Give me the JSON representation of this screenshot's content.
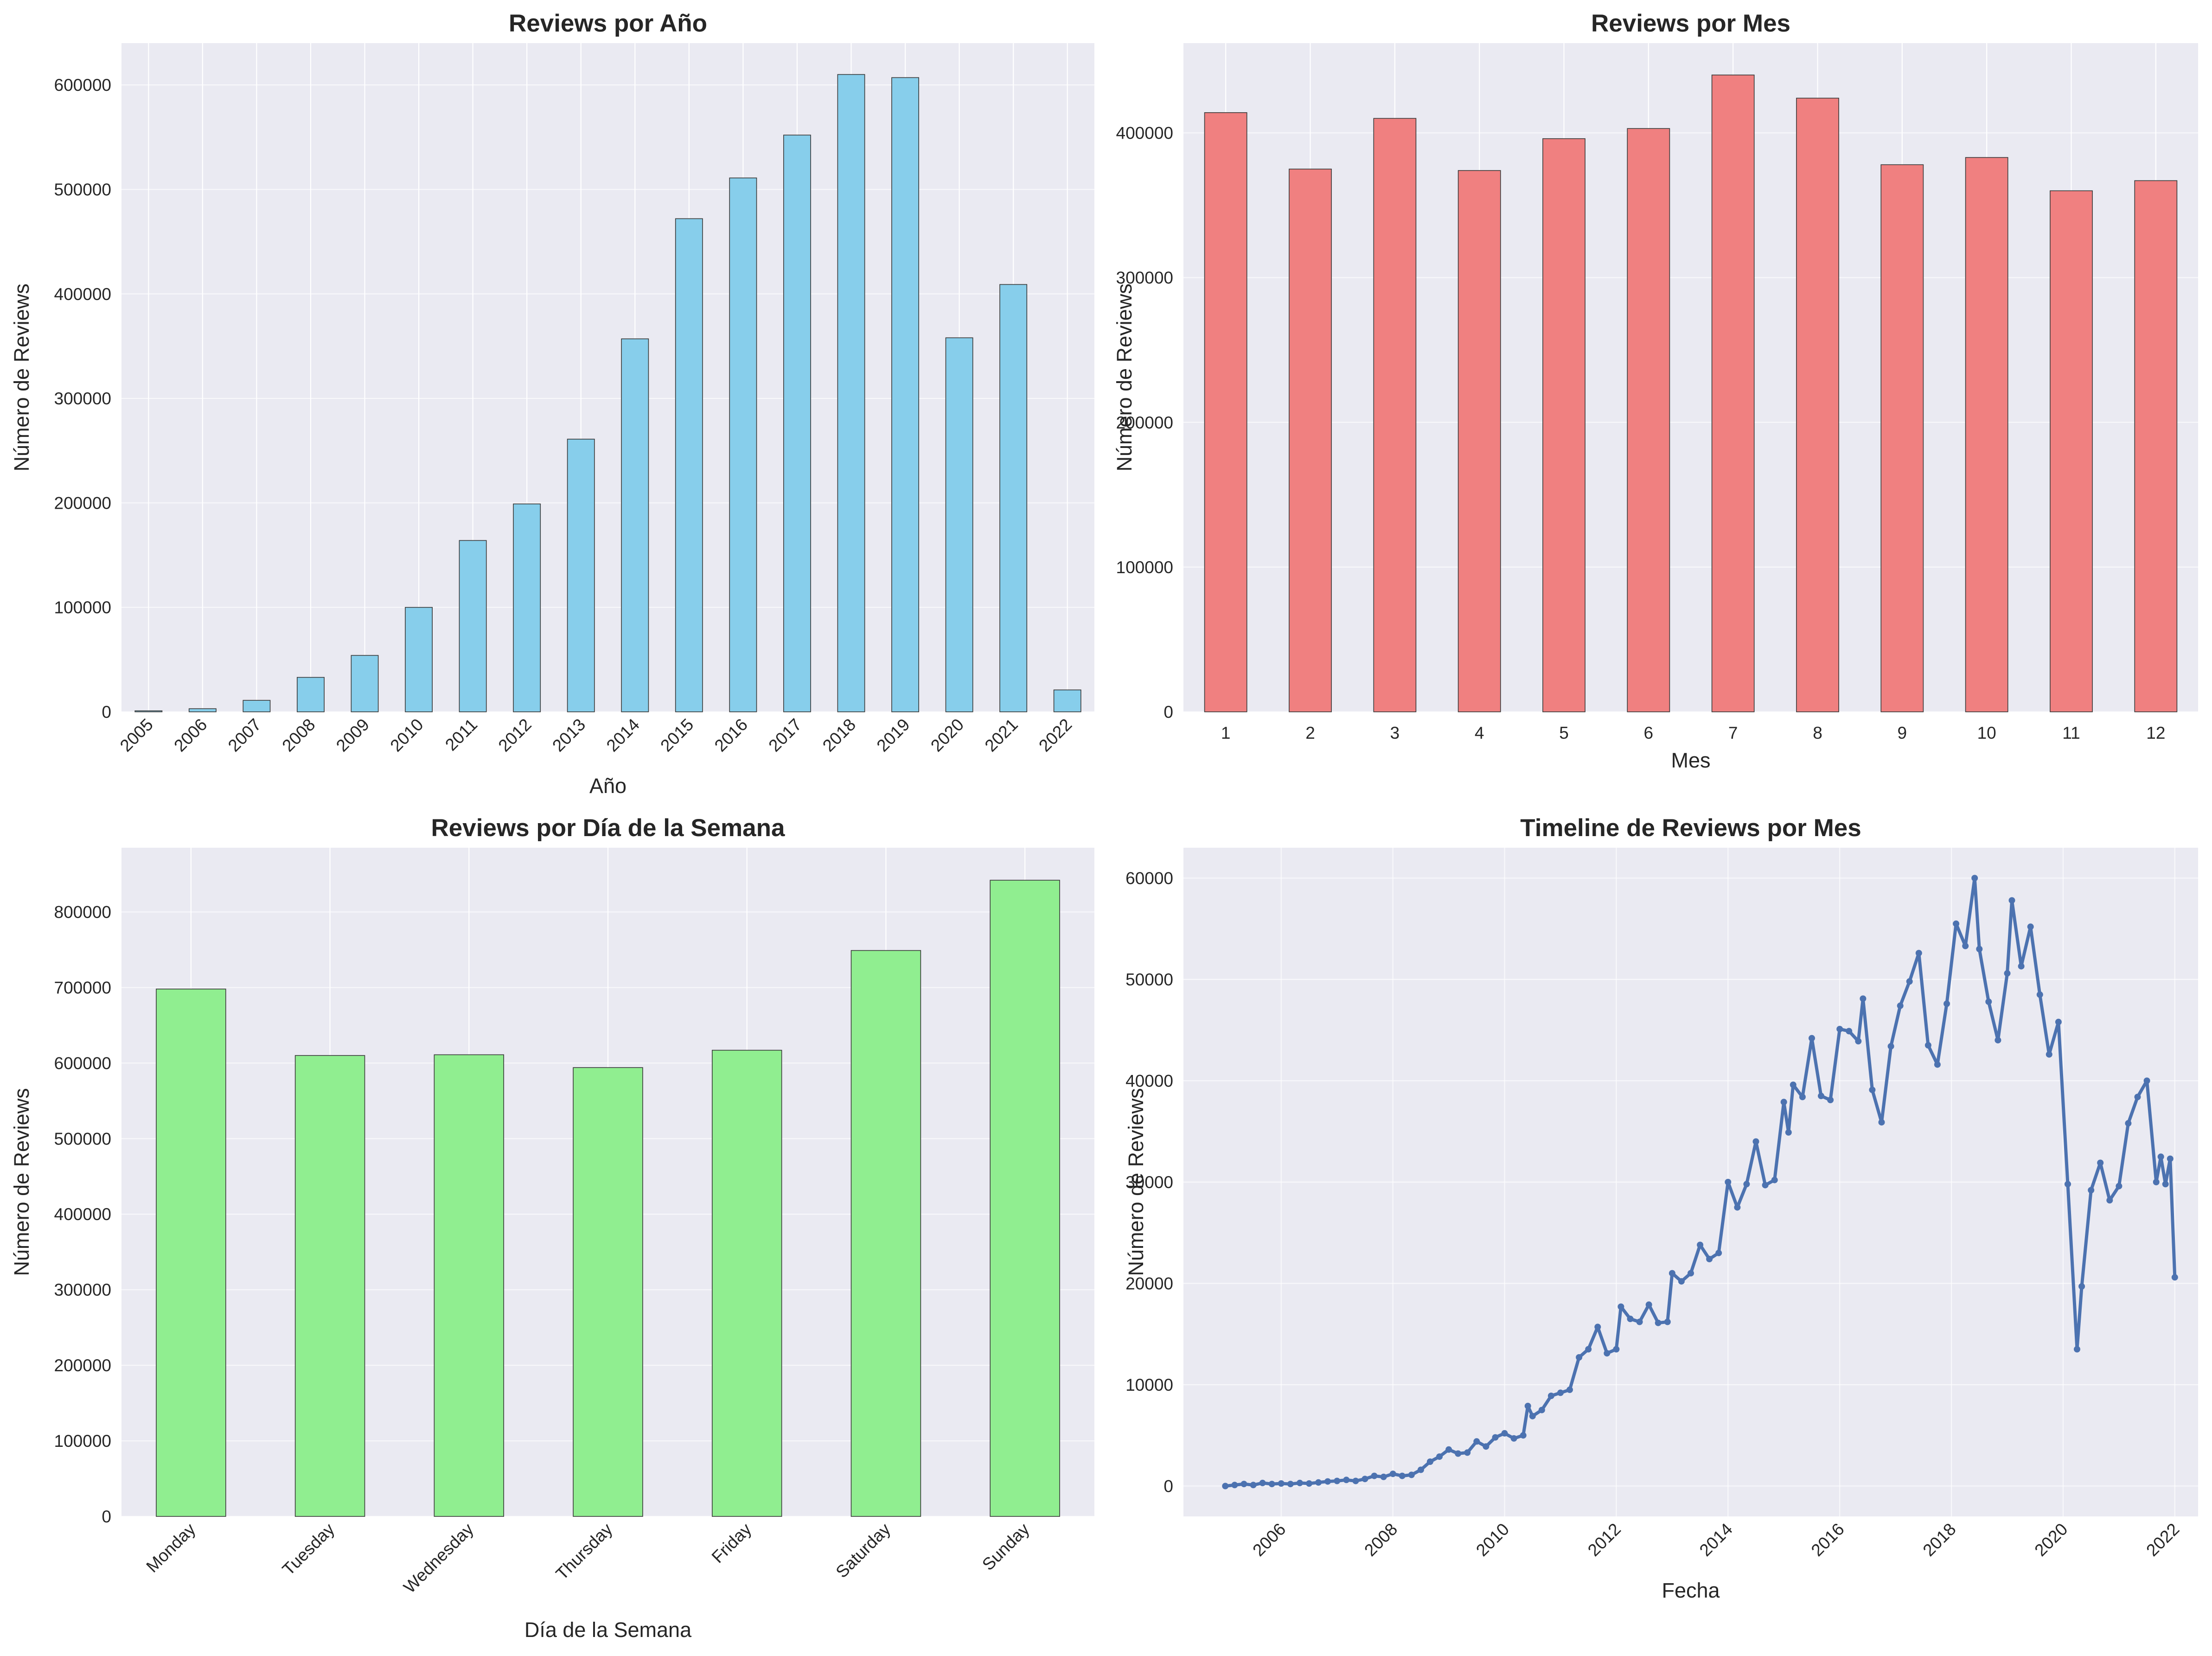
{
  "chart_data": [
    {
      "type": "bar",
      "title": "Reviews por Año",
      "xlabel": "Año",
      "ylabel": "Número de Reviews",
      "categories": [
        "2005",
        "2006",
        "2007",
        "2008",
        "2009",
        "2010",
        "2011",
        "2012",
        "2013",
        "2014",
        "2015",
        "2016",
        "2017",
        "2018",
        "2019",
        "2020",
        "2021",
        "2022"
      ],
      "values": [
        1000,
        3000,
        11000,
        33000,
        54000,
        100000,
        164000,
        199000,
        261000,
        357000,
        472000,
        511000,
        552000,
        610000,
        607000,
        358000,
        409000,
        21000
      ],
      "yticks": [
        0,
        100000,
        200000,
        300000,
        400000,
        500000,
        600000
      ],
      "ylim": [
        0,
        640000
      ],
      "bar_color": "#87ceeb",
      "grid": true
    },
    {
      "type": "bar",
      "title": "Reviews por Mes",
      "xlabel": "Mes",
      "ylabel": "Número de Reviews",
      "categories": [
        "1",
        "2",
        "3",
        "4",
        "5",
        "6",
        "7",
        "8",
        "9",
        "10",
        "11",
        "12"
      ],
      "values": [
        414000,
        375000,
        410000,
        374000,
        396000,
        403000,
        440000,
        424000,
        378000,
        383000,
        360000,
        367000
      ],
      "yticks": [
        0,
        100000,
        200000,
        300000,
        400000
      ],
      "ylim": [
        0,
        462000
      ],
      "bar_color": "#f08080",
      "grid": true
    },
    {
      "type": "bar",
      "title": "Reviews por Día de la Semana",
      "xlabel": "Día de la Semana",
      "ylabel": "Número de Reviews",
      "categories": [
        "Monday",
        "Tuesday",
        "Wednesday",
        "Thursday",
        "Friday",
        "Saturday",
        "Sunday"
      ],
      "values": [
        698000,
        610000,
        611000,
        594000,
        617000,
        749000,
        842000
      ],
      "yticks": [
        0,
        100000,
        200000,
        300000,
        400000,
        500000,
        600000,
        700000,
        800000
      ],
      "ylim": [
        0,
        885000
      ],
      "bar_color": "#90ee90",
      "grid": true
    },
    {
      "type": "line",
      "title": "Timeline de Reviews por Mes",
      "xlabel": "Fecha",
      "ylabel": "Número de Reviews",
      "x_ticks": [
        "2006",
        "2008",
        "2010",
        "2012",
        "2014",
        "2016",
        "2018",
        "2020",
        "2022"
      ],
      "yticks": [
        0,
        10000,
        20000,
        30000,
        40000,
        50000,
        60000
      ],
      "xlim": [
        "2004-04",
        "2022-06"
      ],
      "ylim": [
        -3000,
        63000
      ],
      "line_color": "#4c72b0",
      "grid": true,
      "series": [
        {
          "points": [
            [
              "2005-01",
              0
            ],
            [
              "2005-03",
              100
            ],
            [
              "2005-05",
              200
            ],
            [
              "2005-07",
              100
            ],
            [
              "2005-09",
              300
            ],
            [
              "2005-11",
              200
            ],
            [
              "2006-01",
              250
            ],
            [
              "2006-03",
              200
            ],
            [
              "2006-05",
              300
            ],
            [
              "2006-07",
              250
            ],
            [
              "2006-09",
              350
            ],
            [
              "2006-11",
              450
            ],
            [
              "2007-01",
              500
            ],
            [
              "2007-03",
              600
            ],
            [
              "2007-05",
              500
            ],
            [
              "2007-07",
              700
            ],
            [
              "2007-09",
              1000
            ],
            [
              "2007-11",
              900
            ],
            [
              "2008-01",
              1200
            ],
            [
              "2008-03",
              1000
            ],
            [
              "2008-05",
              1100
            ],
            [
              "2008-07",
              1600
            ],
            [
              "2008-09",
              2400
            ],
            [
              "2008-11",
              2900
            ],
            [
              "2009-01",
              3600
            ],
            [
              "2009-03",
              3200
            ],
            [
              "2009-05",
              3300
            ],
            [
              "2009-07",
              4400
            ],
            [
              "2009-09",
              3900
            ],
            [
              "2009-11",
              4800
            ],
            [
              "2010-01",
              5200
            ],
            [
              "2010-03",
              4700
            ],
            [
              "2010-05",
              5000
            ],
            [
              "2010-06",
              7900
            ],
            [
              "2010-07",
              6900
            ],
            [
              "2010-09",
              7500
            ],
            [
              "2010-11",
              8900
            ],
            [
              "2011-01",
              9200
            ],
            [
              "2011-03",
              9500
            ],
            [
              "2011-05",
              12700
            ],
            [
              "2011-07",
              13500
            ],
            [
              "2011-09",
              15700
            ],
            [
              "2011-11",
              13100
            ],
            [
              "2012-01",
              13500
            ],
            [
              "2012-02",
              17700
            ],
            [
              "2012-04",
              16500
            ],
            [
              "2012-06",
              16200
            ],
            [
              "2012-08",
              17900
            ],
            [
              "2012-10",
              16100
            ],
            [
              "2012-12",
              16200
            ],
            [
              "2013-01",
              21000
            ],
            [
              "2013-03",
              20200
            ],
            [
              "2013-05",
              21000
            ],
            [
              "2013-07",
              23800
            ],
            [
              "2013-09",
              22400
            ],
            [
              "2013-11",
              23000
            ],
            [
              "2014-01",
              30000
            ],
            [
              "2014-03",
              27500
            ],
            [
              "2014-05",
              29800
            ],
            [
              "2014-07",
              34000
            ],
            [
              "2014-09",
              29700
            ],
            [
              "2014-11",
              30200
            ],
            [
              "2015-01",
              37900
            ],
            [
              "2015-02",
              34900
            ],
            [
              "2015-03",
              39600
            ],
            [
              "2015-05",
              38400
            ],
            [
              "2015-07",
              44200
            ],
            [
              "2015-09",
              38500
            ],
            [
              "2015-11",
              38100
            ],
            [
              "2016-01",
              45100
            ],
            [
              "2016-03",
              44900
            ],
            [
              "2016-05",
              43900
            ],
            [
              "2016-06",
              48100
            ],
            [
              "2016-08",
              39100
            ],
            [
              "2016-10",
              35900
            ],
            [
              "2016-12",
              43400
            ],
            [
              "2017-02",
              47400
            ],
            [
              "2017-04",
              49800
            ],
            [
              "2017-06",
              52600
            ],
            [
              "2017-08",
              43500
            ],
            [
              "2017-10",
              41600
            ],
            [
              "2017-12",
              47600
            ],
            [
              "2018-02",
              55500
            ],
            [
              "2018-04",
              53300
            ],
            [
              "2018-06",
              60000
            ],
            [
              "2018-07",
              53000
            ],
            [
              "2018-09",
              47800
            ],
            [
              "2018-11",
              44000
            ],
            [
              "2019-01",
              50600
            ],
            [
              "2019-02",
              57800
            ],
            [
              "2019-04",
              51300
            ],
            [
              "2019-06",
              55200
            ],
            [
              "2019-08",
              48500
            ],
            [
              "2019-10",
              42600
            ],
            [
              "2019-12",
              45800
            ],
            [
              "2020-02",
              29800
            ],
            [
              "2020-04",
              13500
            ],
            [
              "2020-05",
              19700
            ],
            [
              "2020-07",
              29200
            ],
            [
              "2020-09",
              31900
            ],
            [
              "2020-11",
              28200
            ],
            [
              "2021-01",
              29600
            ],
            [
              "2021-03",
              35800
            ],
            [
              "2021-05",
              38400
            ],
            [
              "2021-07",
              40000
            ],
            [
              "2021-09",
              30000
            ],
            [
              "2021-10",
              32500
            ],
            [
              "2021-11",
              29800
            ],
            [
              "2021-12",
              32300
            ],
            [
              "2022-01",
              20600
            ]
          ]
        }
      ]
    }
  ]
}
